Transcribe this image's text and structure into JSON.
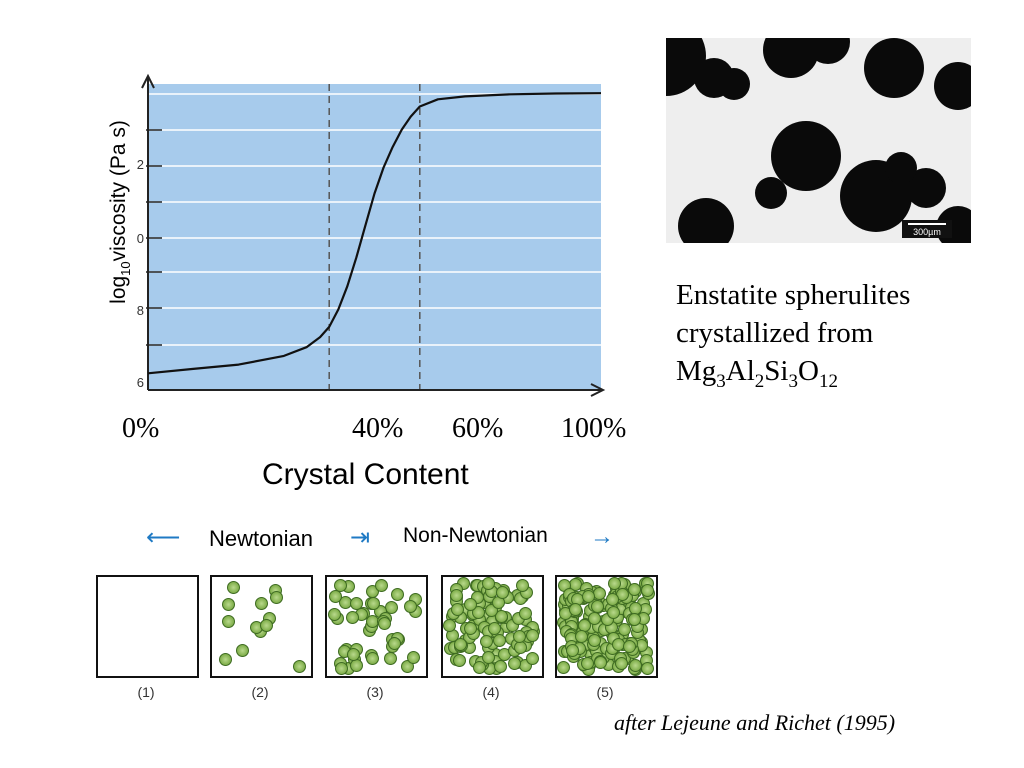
{
  "chart_data": {
    "type": "line",
    "ylabel_main": "log",
    "ylabel_sub": "10",
    "ylabel_rest": "viscosity (Pa s)",
    "xlabel": "Crystal Content",
    "x_ticks": [
      "0%",
      "40%",
      "60%",
      "100%"
    ],
    "y_tick_labels": [
      "2",
      "0",
      "8",
      "6"
    ],
    "xlim": [
      0,
      100
    ],
    "ylim": [
      0,
      10
    ],
    "reference_lines_x": [
      40,
      60
    ],
    "series": [
      {
        "x": [
          0,
          10,
          20,
          30,
          35,
          38,
          40,
          42,
          44,
          46,
          48,
          50,
          52,
          54,
          56,
          58,
          60,
          64,
          70,
          80,
          90,
          100
        ],
        "y": [
          0.3,
          0.45,
          0.6,
          0.9,
          1.2,
          1.55,
          1.9,
          2.5,
          3.3,
          4.3,
          5.4,
          6.5,
          7.4,
          8.1,
          8.7,
          9.15,
          9.5,
          9.75,
          9.85,
          9.92,
          9.95,
          9.96
        ]
      }
    ],
    "colors": {
      "plot_bg": "#a7cbec",
      "curve": "#111111",
      "gridline": "#ffffff",
      "reference_line": "#555555"
    }
  },
  "photo": {
    "scale_bar": "300µm"
  },
  "caption": {
    "line1": "Enstatite spherulites",
    "line2": "crystallized from",
    "formula": [
      {
        "t": "Mg"
      },
      {
        "s": "3"
      },
      {
        "t": "Al"
      },
      {
        "s": "2"
      },
      {
        "t": "Si"
      },
      {
        "s": "3"
      },
      {
        "t": "O"
      },
      {
        "s": "12"
      }
    ]
  },
  "regimes": {
    "newtonian": "Newtonian",
    "non_newtonian": "Non-Newtonian",
    "arrow_color": "#1f7ac4"
  },
  "panels": [
    {
      "label": "(1)",
      "count": 0
    },
    {
      "label": "(2)",
      "count": 13
    },
    {
      "label": "(3)",
      "count": 45
    },
    {
      "label": "(4)",
      "count": 110
    },
    {
      "label": "(5)",
      "count": 180
    }
  ],
  "credit": "after Lejeune and Richet (1995)"
}
